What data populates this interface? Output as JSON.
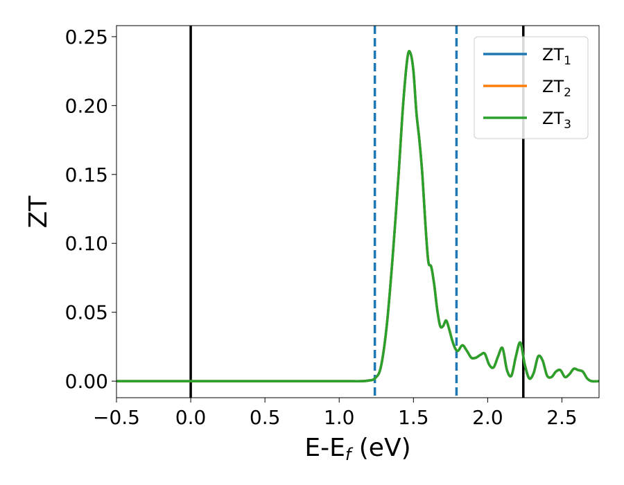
{
  "chart_data": {
    "type": "line",
    "xlabel": {
      "main": "E-E",
      "sub": "f",
      "suffix": " (eV)"
    },
    "ylabel": "ZT",
    "xlim": [
      -0.5,
      2.75
    ],
    "ylim": [
      -0.012,
      0.258
    ],
    "xticks": [
      -0.5,
      0.0,
      0.5,
      1.0,
      1.5,
      2.0,
      2.5
    ],
    "xtick_labels": [
      "−0.5",
      "0.0",
      "0.5",
      "1.0",
      "1.5",
      "2.0",
      "2.5"
    ],
    "yticks": [
      0.0,
      0.05,
      0.1,
      0.15,
      0.2,
      0.25
    ],
    "ytick_labels": [
      "0.00",
      "0.05",
      "0.10",
      "0.15",
      "0.20",
      "0.25"
    ],
    "grid": false,
    "legend_position": "top-right",
    "vlines": [
      {
        "x": 0.0,
        "style": "solid",
        "color": "#000000"
      },
      {
        "x": 2.24,
        "style": "solid",
        "color": "#000000"
      },
      {
        "x": 1.24,
        "style": "dashed",
        "color": "#1f77b4"
      },
      {
        "x": 1.79,
        "style": "dashed",
        "color": "#1f77b4"
      }
    ],
    "series": [
      {
        "name": "ZT",
        "name_sub": "1",
        "color": "#1f77b4",
        "x": [
          -0.5,
          0.0,
          0.5,
          1.0,
          1.15,
          1.2,
          1.24,
          1.28,
          1.32,
          1.36,
          1.4,
          1.43,
          1.46,
          1.48,
          1.5,
          1.52,
          1.54,
          1.56,
          1.58,
          1.6,
          1.62,
          1.64,
          1.66,
          1.68,
          1.7,
          1.72,
          1.74,
          1.76,
          1.78,
          1.8,
          1.83,
          1.86,
          1.89,
          1.92,
          1.95,
          1.98,
          2.01,
          2.04,
          2.07,
          2.1,
          2.13,
          2.16,
          2.19,
          2.22,
          2.25,
          2.28,
          2.31,
          2.34,
          2.37,
          2.4,
          2.43,
          2.46,
          2.49,
          2.52,
          2.55,
          2.58,
          2.61,
          2.64,
          2.67,
          2.7,
          2.75
        ],
        "y": [
          0.0,
          0.0,
          0.0,
          0.0,
          0.0,
          0.0005,
          0.002,
          0.01,
          0.04,
          0.09,
          0.15,
          0.2,
          0.235,
          0.238,
          0.225,
          0.195,
          0.175,
          0.15,
          0.115,
          0.087,
          0.083,
          0.07,
          0.052,
          0.04,
          0.04,
          0.044,
          0.038,
          0.03,
          0.024,
          0.022,
          0.026,
          0.022,
          0.017,
          0.017,
          0.019,
          0.02,
          0.012,
          0.01,
          0.018,
          0.024,
          0.008,
          0.004,
          0.018,
          0.028,
          0.012,
          0.002,
          0.006,
          0.018,
          0.015,
          0.004,
          0.003,
          0.007,
          0.008,
          0.003,
          0.005,
          0.009,
          0.008,
          0.007,
          0.002,
          0.0,
          0.0
        ]
      },
      {
        "name": "ZT",
        "name_sub": "2",
        "color": "#ff7f0e",
        "x": [
          -0.5,
          0.0,
          0.5,
          1.0,
          1.15,
          1.2,
          1.24,
          1.28,
          1.32,
          1.36,
          1.4,
          1.43,
          1.46,
          1.48,
          1.5,
          1.52,
          1.54,
          1.56,
          1.58,
          1.6,
          1.62,
          1.64,
          1.66,
          1.68,
          1.7,
          1.72,
          1.74,
          1.76,
          1.78,
          1.8,
          1.83,
          1.86,
          1.89,
          1.92,
          1.95,
          1.98,
          2.01,
          2.04,
          2.07,
          2.1,
          2.13,
          2.16,
          2.19,
          2.22,
          2.25,
          2.28,
          2.31,
          2.34,
          2.37,
          2.4,
          2.43,
          2.46,
          2.49,
          2.52,
          2.55,
          2.58,
          2.61,
          2.64,
          2.67,
          2.7,
          2.75
        ],
        "y": [
          0.0,
          0.0,
          0.0,
          0.0,
          0.0,
          0.0005,
          0.002,
          0.01,
          0.04,
          0.09,
          0.15,
          0.2,
          0.235,
          0.238,
          0.225,
          0.195,
          0.175,
          0.15,
          0.115,
          0.087,
          0.083,
          0.07,
          0.052,
          0.04,
          0.04,
          0.044,
          0.038,
          0.03,
          0.024,
          0.022,
          0.026,
          0.022,
          0.017,
          0.017,
          0.019,
          0.02,
          0.012,
          0.01,
          0.018,
          0.024,
          0.008,
          0.004,
          0.018,
          0.028,
          0.012,
          0.002,
          0.006,
          0.018,
          0.015,
          0.004,
          0.003,
          0.007,
          0.008,
          0.003,
          0.005,
          0.009,
          0.008,
          0.007,
          0.002,
          0.0,
          0.0
        ]
      },
      {
        "name": "ZT",
        "name_sub": "3",
        "color": "#2ca02c",
        "x": [
          -0.5,
          0.0,
          0.5,
          1.0,
          1.15,
          1.2,
          1.24,
          1.28,
          1.32,
          1.36,
          1.4,
          1.43,
          1.46,
          1.48,
          1.5,
          1.52,
          1.54,
          1.56,
          1.58,
          1.6,
          1.62,
          1.64,
          1.66,
          1.68,
          1.7,
          1.72,
          1.74,
          1.76,
          1.78,
          1.8,
          1.83,
          1.86,
          1.89,
          1.92,
          1.95,
          1.98,
          2.01,
          2.04,
          2.07,
          2.1,
          2.13,
          2.16,
          2.19,
          2.22,
          2.25,
          2.28,
          2.31,
          2.34,
          2.37,
          2.4,
          2.43,
          2.46,
          2.49,
          2.52,
          2.55,
          2.58,
          2.61,
          2.64,
          2.67,
          2.7,
          2.75
        ],
        "y": [
          0.0,
          0.0,
          0.0,
          0.0,
          0.0,
          0.0005,
          0.002,
          0.01,
          0.04,
          0.09,
          0.15,
          0.2,
          0.235,
          0.238,
          0.225,
          0.195,
          0.175,
          0.15,
          0.115,
          0.087,
          0.083,
          0.07,
          0.052,
          0.04,
          0.04,
          0.044,
          0.038,
          0.03,
          0.024,
          0.022,
          0.026,
          0.022,
          0.017,
          0.017,
          0.019,
          0.02,
          0.012,
          0.01,
          0.018,
          0.024,
          0.008,
          0.004,
          0.018,
          0.028,
          0.012,
          0.002,
          0.006,
          0.018,
          0.015,
          0.004,
          0.003,
          0.007,
          0.008,
          0.003,
          0.005,
          0.009,
          0.008,
          0.007,
          0.002,
          0.0,
          0.0
        ]
      }
    ]
  }
}
